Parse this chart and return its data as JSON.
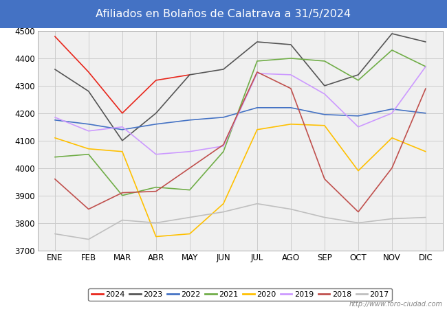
{
  "title": "Afiliados en Bolaños de Calatrava a 31/5/2024",
  "title_color": "white",
  "title_bg_color": "#4472c4",
  "ylim": [
    3700,
    4500
  ],
  "yticks": [
    3700,
    3800,
    3900,
    4000,
    4100,
    4200,
    4300,
    4400,
    4500
  ],
  "months": [
    "ENE",
    "FEB",
    "MAR",
    "ABR",
    "MAY",
    "JUN",
    "JUL",
    "AGO",
    "SEP",
    "OCT",
    "NOV",
    "DIC"
  ],
  "series": {
    "2024": {
      "color": "#e8251a",
      "data": [
        4480,
        4350,
        4200,
        4320,
        4340,
        null,
        null,
        null,
        null,
        null,
        null,
        null
      ]
    },
    "2023": {
      "color": "#555555",
      "data": [
        4360,
        4280,
        4100,
        4200,
        4340,
        4360,
        4460,
        4450,
        4300,
        4340,
        4490,
        4460
      ]
    },
    "2022": {
      "color": "#4472c4",
      "data": [
        4175,
        4160,
        4140,
        4160,
        4175,
        4185,
        4220,
        4220,
        4195,
        4190,
        4215,
        4200
      ]
    },
    "2021": {
      "color": "#70ad47",
      "data": [
        4040,
        4050,
        3900,
        3930,
        3920,
        4060,
        4390,
        4400,
        4390,
        4320,
        4430,
        4370
      ]
    },
    "2020": {
      "color": "#ffc000",
      "data": [
        4110,
        4070,
        4060,
        3750,
        3760,
        3870,
        4140,
        4160,
        4155,
        3990,
        4110,
        4060
      ]
    },
    "2019": {
      "color": "#cc99ff",
      "data": [
        4185,
        4135,
        4150,
        4050,
        4060,
        4080,
        4345,
        4340,
        4270,
        4150,
        4200,
        4370
      ]
    },
    "2018": {
      "color": "#c0504d",
      "data": [
        3960,
        3850,
        3910,
        3915,
        4000,
        4085,
        4350,
        4290,
        3960,
        3840,
        4000,
        4290
      ]
    },
    "2017": {
      "color": "#bfbfbf",
      "data": [
        3760,
        3740,
        3810,
        3800,
        3820,
        3840,
        3870,
        3850,
        3820,
        3800,
        3815,
        3820
      ]
    }
  },
  "legend_order": [
    "2024",
    "2023",
    "2022",
    "2021",
    "2020",
    "2019",
    "2018",
    "2017"
  ],
  "watermark": "http://www.foro-ciudad.com"
}
